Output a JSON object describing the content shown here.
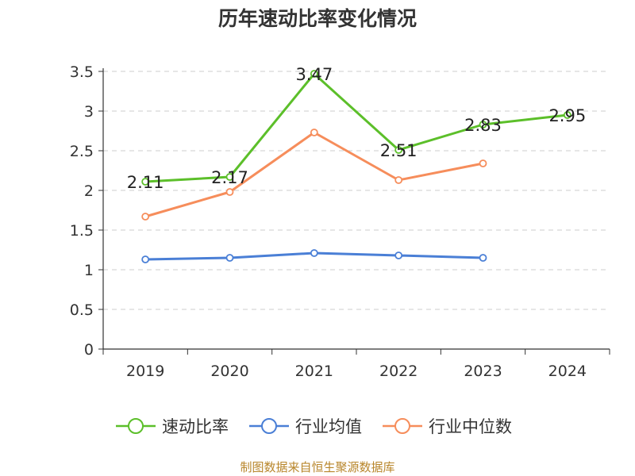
{
  "chart_data": {
    "type": "line",
    "title": "历年速动比率变化情况",
    "categories": [
      "2019",
      "2020",
      "2021",
      "2022",
      "2023",
      "2024"
    ],
    "ylim": [
      0,
      3.5
    ],
    "yticks": [
      "0",
      "0.5",
      "1",
      "1.5",
      "2",
      "2.5",
      "3",
      "3.5"
    ],
    "grid": true,
    "legend_position": "bottom",
    "series": [
      {
        "name": "速动比率",
        "color": "#5cbf2a",
        "values": [
          2.11,
          2.17,
          3.47,
          2.51,
          2.83,
          2.95
        ],
        "labels": [
          "2.11",
          "2.17",
          "3.47",
          "2.51",
          "2.83",
          "2.95"
        ]
      },
      {
        "name": "行业均值",
        "color": "#4a7fd6",
        "values": [
          1.13,
          1.15,
          1.21,
          1.18,
          1.15,
          null
        ]
      },
      {
        "name": "行业中位数",
        "color": "#f68d5b",
        "values": [
          1.67,
          1.98,
          2.73,
          2.13,
          2.34,
          null
        ]
      }
    ]
  },
  "footer": {
    "source": "制图数据来自恒生聚源数据库"
  }
}
